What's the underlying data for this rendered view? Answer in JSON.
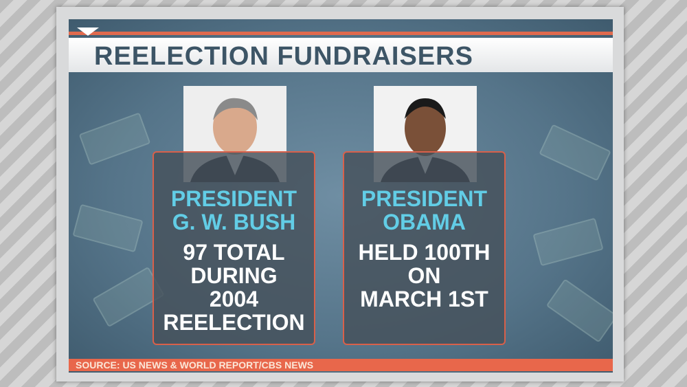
{
  "header": {
    "title": "REELECTION FUNDRAISERS"
  },
  "cards": [
    {
      "name_lines": [
        "PRESIDENT",
        "G. W. BUSH"
      ],
      "detail_lines": [
        "97 TOTAL",
        "DURING",
        "2004",
        "REELECTION"
      ]
    },
    {
      "name_lines": [
        "PRESIDENT",
        "OBAMA"
      ],
      "detail_lines": [
        "HELD 100TH",
        "ON",
        "MARCH 1ST"
      ]
    }
  ],
  "source": "SOURCE: US NEWS & WORLD REPORT/CBS NEWS"
}
